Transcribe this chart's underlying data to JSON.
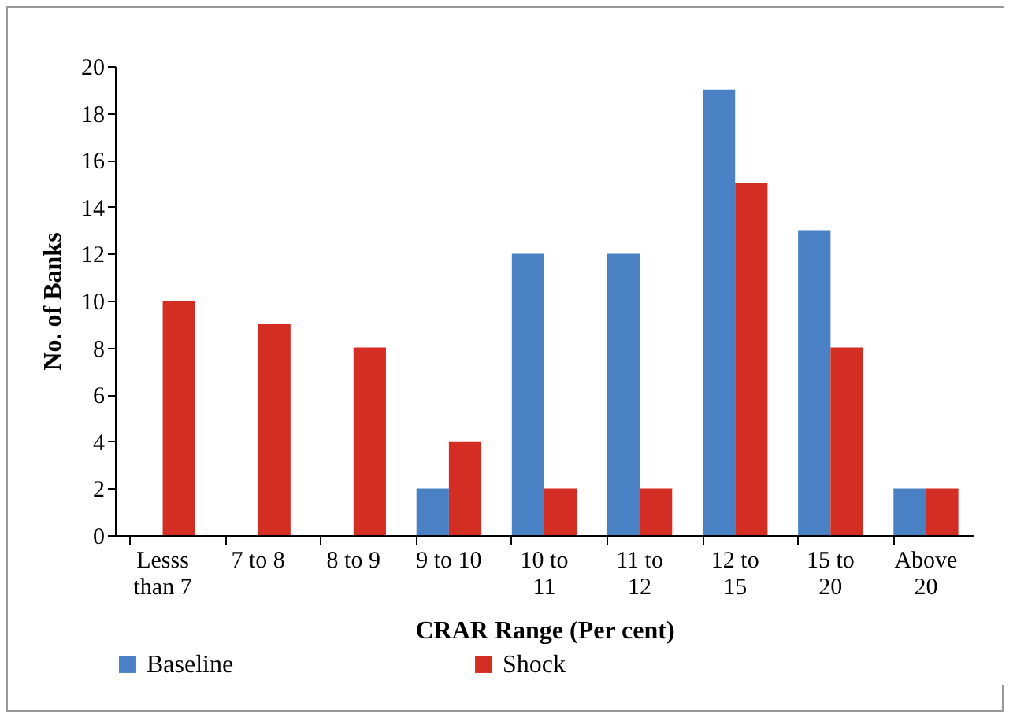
{
  "chart_data": {
    "type": "bar",
    "xlabel": "CRAR Range (Per cent)",
    "ylabel": "No. of Banks",
    "categories": [
      "Lesss than 7",
      "7 to 8",
      "8 to 9",
      "9 to 10",
      "10 to 11",
      "11 to 12",
      "12 to 15",
      "15 to 20",
      "Above 20"
    ],
    "series": [
      {
        "name": "Baseline",
        "color": "#4a81c4",
        "values": [
          0,
          0,
          0,
          2,
          12,
          12,
          19,
          13,
          2
        ]
      },
      {
        "name": "Shock",
        "color": "#d42e24",
        "values": [
          10,
          9,
          8,
          4,
          2,
          2,
          15,
          8,
          2
        ]
      }
    ],
    "ylim": [
      0,
      20
    ],
    "yticks": [
      0,
      2,
      4,
      6,
      8,
      10,
      12,
      14,
      16,
      18,
      20
    ],
    "grid": false,
    "legend": "bottom"
  }
}
